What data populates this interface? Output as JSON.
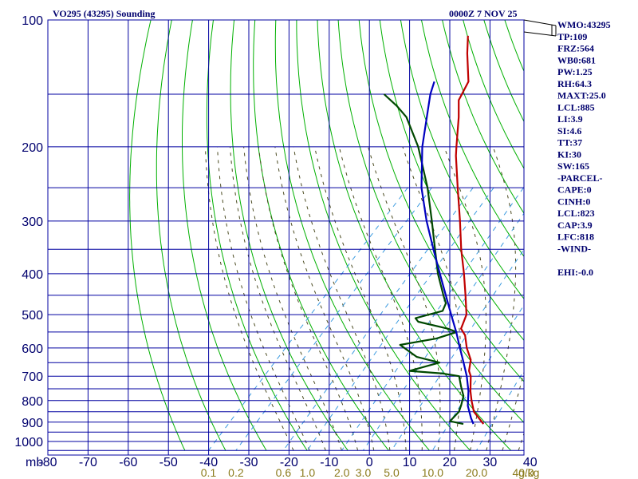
{
  "header": {
    "station_title": "VO295 (43295) Sounding",
    "datetime": "0000Z  7 NOV 25"
  },
  "indices": [
    "WMO:43295",
    "TP:109",
    "FRZ:564",
    "WB0:681",
    "PW:1.25",
    "RH:64.3",
    "MAXT:25.0",
    "LCL:885",
    "LI:3.9",
    "SI:4.6",
    "TT:37",
    "KI:30",
    "SW:165",
    "-PARCEL-",
    "CAPE:0",
    "CINH:0",
    "LCL:823",
    "CAP:3.9",
    "LFC:818",
    "-WIND-",
    "",
    "EHI:-0.0"
  ],
  "colors": {
    "background": "#ffffff",
    "grid": "#0000a0",
    "dry_adiabat": "#00b000",
    "moist_adiabat": "#4a4a20",
    "mixing_ratio": "#3a9ae0",
    "temperature": "#c00000",
    "dewpoint": "#004800",
    "parcel": "#0000c0",
    "label": "#00006e",
    "mixing_label": "#8a7a1a"
  },
  "chart_data": {
    "type": "line",
    "diagram": "skew-T log-P",
    "xlabel": "",
    "ylabel": "",
    "y_unit": "mb",
    "mixing_unit": "g/kg",
    "pressure_ticks": [
      100,
      200,
      300,
      400,
      500,
      600,
      700,
      800,
      900,
      1000
    ],
    "pressure_labels": [
      "100",
      "200",
      "300",
      "400",
      "500",
      "600",
      "700",
      "800",
      "900",
      "1000"
    ],
    "pressure_grid": [
      100,
      150,
      200,
      250,
      300,
      350,
      400,
      450,
      500,
      550,
      600,
      650,
      700,
      750,
      800,
      850,
      900,
      950,
      1000,
      1050
    ],
    "temperature_ticks": [
      -80,
      -70,
      -60,
      -50,
      -40,
      -30,
      -20,
      -10,
      0,
      10,
      20,
      30,
      40
    ],
    "temperature_labels": [
      "-80",
      "-70",
      "-60",
      "-50",
      "-40",
      "-30",
      "-20",
      "-10",
      "0",
      "10",
      "20",
      "30",
      "40"
    ],
    "mixing_ratio_values": [
      0.1,
      0.2,
      0.6,
      1.0,
      2.0,
      3.0,
      5.0,
      10.0,
      20.0,
      40.0
    ],
    "mixing_ratio_labels": [
      "0.1",
      "0.2",
      "0.6",
      "1.0",
      "2.0",
      "3.0",
      "5.0",
      "10.0",
      "20.0",
      "40.0"
    ],
    "xlim": [
      -80,
      40
    ],
    "ylim": [
      1050,
      100
    ],
    "grid": true,
    "series": [
      {
        "key": "temperature",
        "points": [
          {
            "p": 909,
            "t": 21.0
          },
          {
            "p": 850,
            "t": 15.7
          },
          {
            "p": 800,
            "t": 12.5
          },
          {
            "p": 760,
            "t": 10.0
          },
          {
            "p": 700,
            "t": 6.5
          },
          {
            "p": 680,
            "t": 4.8
          },
          {
            "p": 640,
            "t": 2.6
          },
          {
            "p": 600,
            "t": -1.2
          },
          {
            "p": 560,
            "t": -4.6
          },
          {
            "p": 540,
            "t": -7.2
          },
          {
            "p": 500,
            "t": -9.2
          },
          {
            "p": 450,
            "t": -14.0
          },
          {
            "p": 400,
            "t": -19.5
          },
          {
            "p": 350,
            "t": -26.0
          },
          {
            "p": 300,
            "t": -33.0
          },
          {
            "p": 250,
            "t": -41.5
          },
          {
            "p": 210,
            "t": -49.5
          },
          {
            "p": 200,
            "t": -51.5
          },
          {
            "p": 170,
            "t": -58.0
          },
          {
            "p": 155,
            "t": -62.0
          },
          {
            "p": 140,
            "t": -64.0
          },
          {
            "p": 120,
            "t": -71.0
          },
          {
            "p": 109,
            "t": -75.0
          }
        ]
      },
      {
        "key": "dewpoint",
        "points": [
          {
            "p": 909,
            "t": 16.0
          },
          {
            "p": 895,
            "t": 12.0
          },
          {
            "p": 850,
            "t": 12.0
          },
          {
            "p": 820,
            "t": 11.0
          },
          {
            "p": 780,
            "t": 9.4
          },
          {
            "p": 740,
            "t": 6.5
          },
          {
            "p": 700,
            "t": 3.6
          },
          {
            "p": 690,
            "t": -1.0
          },
          {
            "p": 680,
            "t": -10.0
          },
          {
            "p": 650,
            "t": -4.5
          },
          {
            "p": 630,
            "t": -11.5
          },
          {
            "p": 590,
            "t": -18.5
          },
          {
            "p": 570,
            "t": -11.0
          },
          {
            "p": 550,
            "t": -7.5
          },
          {
            "p": 540,
            "t": -10.5
          },
          {
            "p": 520,
            "t": -19.5
          },
          {
            "p": 510,
            "t": -21.0
          },
          {
            "p": 490,
            "t": -16.0
          },
          {
            "p": 470,
            "t": -17.0
          },
          {
            "p": 450,
            "t": -19.5
          },
          {
            "p": 400,
            "t": -26.0
          },
          {
            "p": 350,
            "t": -32.5
          },
          {
            "p": 300,
            "t": -40.0
          },
          {
            "p": 250,
            "t": -49.0
          },
          {
            "p": 200,
            "t": -61.0
          },
          {
            "p": 170,
            "t": -71.0
          },
          {
            "p": 160,
            "t": -76.0
          },
          {
            "p": 150,
            "t": -82.0
          }
        ]
      },
      {
        "key": "parcel",
        "points": [
          {
            "p": 909,
            "t": 18.5
          },
          {
            "p": 880,
            "t": 16.5
          },
          {
            "p": 823,
            "t": 12.8
          },
          {
            "p": 760,
            "t": 9.5
          },
          {
            "p": 700,
            "t": 5.5
          },
          {
            "p": 650,
            "t": 1.5
          },
          {
            "p": 600,
            "t": -2.9
          },
          {
            "p": 550,
            "t": -7.6
          },
          {
            "p": 500,
            "t": -13.0
          },
          {
            "p": 450,
            "t": -18.9
          },
          {
            "p": 400,
            "t": -25.5
          },
          {
            "p": 350,
            "t": -32.9
          },
          {
            "p": 300,
            "t": -41.3
          },
          {
            "p": 250,
            "t": -50.5
          },
          {
            "p": 200,
            "t": -60.0
          },
          {
            "p": 150,
            "t": -70.5
          },
          {
            "p": 140,
            "t": -72.5
          }
        ]
      }
    ]
  }
}
